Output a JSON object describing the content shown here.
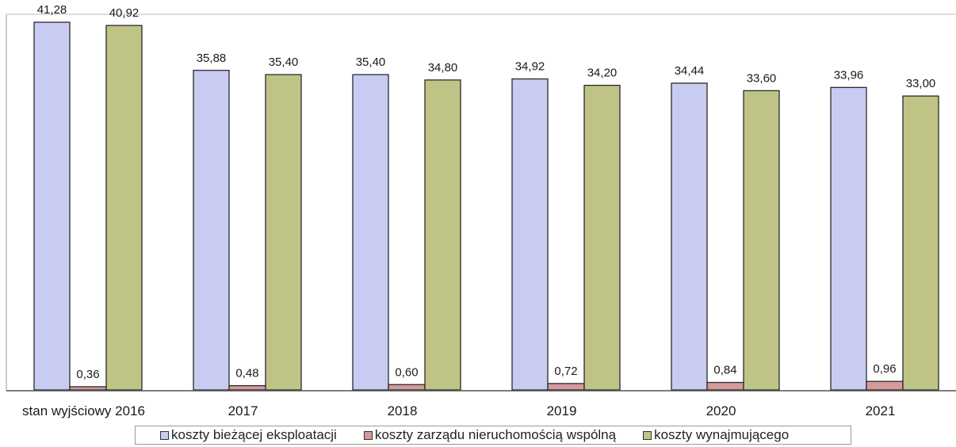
{
  "chart_data": {
    "type": "bar",
    "title": "",
    "xlabel": "",
    "ylabel": "",
    "ylim": [
      0,
      42
    ],
    "grid": false,
    "legend_position": "bottom",
    "categories": [
      "stan wyjściowy 2016",
      "2017",
      "2018",
      "2019",
      "2020",
      "2021"
    ],
    "series": [
      {
        "name": "koszty bieżącej eksploatacji",
        "color": "#c9ccf2",
        "values": [
          41.28,
          35.88,
          35.4,
          34.92,
          34.44,
          33.96
        ],
        "labels": [
          "41,28",
          "35,88",
          "35,40",
          "34,92",
          "34,44",
          "33,96"
        ]
      },
      {
        "name": "koszty zarządu nieruchomością wspólną",
        "color": "#d49a9c",
        "values": [
          0.36,
          0.48,
          0.6,
          0.72,
          0.84,
          0.96
        ],
        "labels": [
          "0,36",
          "0,48",
          "0,60",
          "0,72",
          "0,84",
          "0,96"
        ]
      },
      {
        "name": "koszty wynajmującego",
        "color": "#bfc486",
        "values": [
          40.92,
          35.4,
          34.8,
          34.2,
          33.6,
          33.0
        ],
        "labels": [
          "40,92",
          "35,40",
          "34,80",
          "34,20",
          "33,60",
          "33,00"
        ]
      }
    ]
  }
}
